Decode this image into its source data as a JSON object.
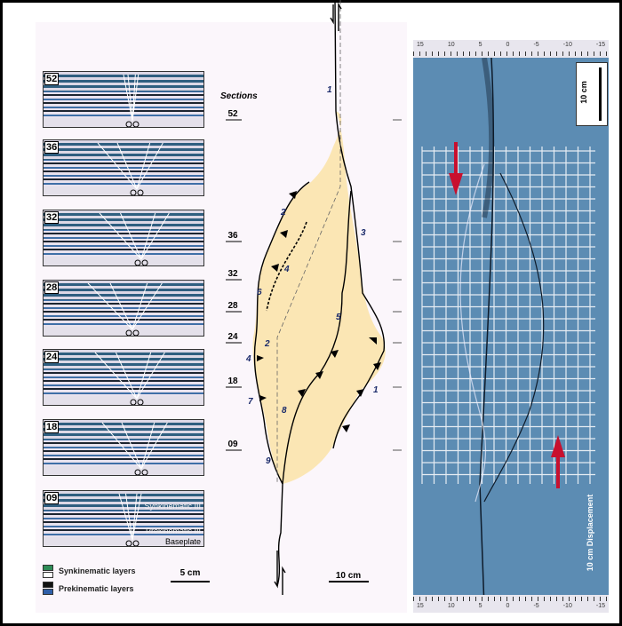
{
  "sections_panel": {
    "panels": [
      {
        "id": "52"
      },
      {
        "id": "36"
      },
      {
        "id": "32"
      },
      {
        "id": "28"
      },
      {
        "id": "24"
      },
      {
        "id": "18"
      },
      {
        "id": "09",
        "labels": [
          "Synkinematic III",
          "Prekinematic III",
          "Baseplate"
        ]
      }
    ],
    "legend": [
      {
        "label": "Synkinematic layers",
        "colors": [
          "#2e8b57",
          "#ffffff"
        ]
      },
      {
        "label": "Prekinematic layers",
        "colors": [
          "#111111",
          "#2f5fa8"
        ]
      }
    ],
    "scale": "5 cm"
  },
  "map": {
    "title": "Sections",
    "section_labels": [
      "52",
      "36",
      "32",
      "28",
      "24",
      "18",
      "09"
    ],
    "fault_labels": [
      "1",
      "2",
      "3",
      "4",
      "5",
      "6",
      "2",
      "4",
      "7",
      "8",
      "1",
      "9"
    ],
    "scale": "10 cm",
    "fill_color": "#fbe6b4"
  },
  "photo": {
    "scale": "10 cm",
    "displacement_label": "10 cm Displacement",
    "ruler_top": [
      "15",
      "10",
      "5",
      "0",
      "-5",
      "-10",
      "-15"
    ],
    "ruler_bottom": [
      "15",
      "10",
      "5",
      "0",
      "-5",
      "-10",
      "-15"
    ],
    "arrow_color": "#c8102e",
    "grid_color": "#ffffff"
  }
}
